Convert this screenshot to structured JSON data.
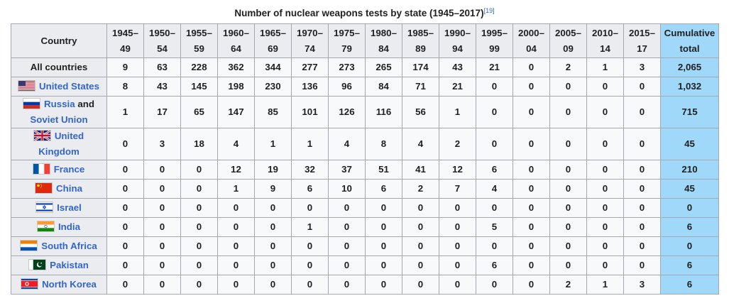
{
  "caption": {
    "title": "Number of nuclear weapons tests by state (1945–2017)",
    "ref": "[19]"
  },
  "header": {
    "country": "Country",
    "periods": [
      {
        "top": "1945–",
        "bottom": "49"
      },
      {
        "top": "1950–",
        "bottom": "54"
      },
      {
        "top": "1955–",
        "bottom": "59"
      },
      {
        "top": "1960–",
        "bottom": "64"
      },
      {
        "top": "1965–",
        "bottom": "69"
      },
      {
        "top": "1970–",
        "bottom": "74"
      },
      {
        "top": "1975–",
        "bottom": "79"
      },
      {
        "top": "1980–",
        "bottom": "84"
      },
      {
        "top": "1985–",
        "bottom": "89"
      },
      {
        "top": "1990–",
        "bottom": "94"
      },
      {
        "top": "1995–",
        "bottom": "99"
      },
      {
        "top": "2000–",
        "bottom": "04"
      },
      {
        "top": "2005–",
        "bottom": "09"
      },
      {
        "top": "2010–",
        "bottom": "14"
      },
      {
        "top": "2015–",
        "bottom": "17"
      }
    ],
    "cumulative": {
      "top": "Cumulative",
      "bottom": "total"
    }
  },
  "rows": [
    {
      "name": "All countries",
      "values": [
        "9",
        "63",
        "228",
        "362",
        "344",
        "277",
        "273",
        "265",
        "174",
        "43",
        "21",
        "0",
        "2",
        "1",
        "3"
      ],
      "total": "2,065"
    },
    {
      "name": "United States",
      "flag": "us-flag-icon",
      "values": [
        "8",
        "43",
        "145",
        "198",
        "230",
        "136",
        "96",
        "84",
        "71",
        "21",
        "0",
        "0",
        "0",
        "0",
        "0"
      ],
      "total": "1,032"
    },
    {
      "name_link": "Russia",
      "name_plain": " and ",
      "name_link2": "Soviet Union",
      "flag": "russia-flag-icon",
      "values": [
        "1",
        "17",
        "65",
        "147",
        "85",
        "101",
        "126",
        "116",
        "56",
        "1",
        "0",
        "0",
        "0",
        "0",
        "0"
      ],
      "total": "715"
    },
    {
      "name_line1": "United",
      "name_line2": "Kingdom",
      "flag": "uk-flag-icon",
      "values": [
        "0",
        "3",
        "18",
        "4",
        "1",
        "1",
        "4",
        "8",
        "4",
        "2",
        "0",
        "0",
        "0",
        "0",
        "0"
      ],
      "total": "45"
    },
    {
      "name": "France",
      "flag": "france-flag-icon",
      "values": [
        "0",
        "0",
        "0",
        "12",
        "19",
        "32",
        "37",
        "51",
        "41",
        "12",
        "6",
        "0",
        "0",
        "0",
        "0"
      ],
      "total": "210"
    },
    {
      "name": "China",
      "flag": "china-flag-icon",
      "values": [
        "0",
        "0",
        "0",
        "1",
        "9",
        "6",
        "10",
        "6",
        "2",
        "7",
        "4",
        "0",
        "0",
        "0",
        "0"
      ],
      "total": "45"
    },
    {
      "name": "Israel",
      "flag": "israel-flag-icon",
      "values": [
        "0",
        "0",
        "0",
        "0",
        "0",
        "0",
        "0",
        "0",
        "0",
        "0",
        "0",
        "0",
        "0",
        "0",
        "0"
      ],
      "total": "0"
    },
    {
      "name": "India",
      "flag": "india-flag-icon",
      "values": [
        "0",
        "0",
        "0",
        "0",
        "0",
        "1",
        "0",
        "0",
        "0",
        "0",
        "5",
        "0",
        "0",
        "0",
        "0"
      ],
      "total": "6"
    },
    {
      "name": "South Africa",
      "flag": "south-africa-flag-icon",
      "values": [
        "0",
        "0",
        "0",
        "0",
        "0",
        "0",
        "0",
        "0",
        "0",
        "0",
        "0",
        "0",
        "0",
        "0",
        "0"
      ],
      "total": "0"
    },
    {
      "name": "Pakistan",
      "flag": "pakistan-flag-icon",
      "values": [
        "0",
        "0",
        "0",
        "0",
        "0",
        "0",
        "0",
        "0",
        "0",
        "0",
        "6",
        "0",
        "0",
        "0",
        "0"
      ],
      "total": "6"
    },
    {
      "name": "North Korea",
      "flag": "north-korea-flag-icon",
      "values": [
        "0",
        "0",
        "0",
        "0",
        "0",
        "0",
        "0",
        "0",
        "0",
        "0",
        "0",
        "0",
        "2",
        "1",
        "3"
      ],
      "total": "6"
    }
  ],
  "colors": {
    "link": "#3366cc",
    "header_bg": "#eaecf0",
    "cell_bg": "#f8f9fa",
    "cumulative_bg": "#a0d8f9",
    "border": "#a2a9b1"
  }
}
